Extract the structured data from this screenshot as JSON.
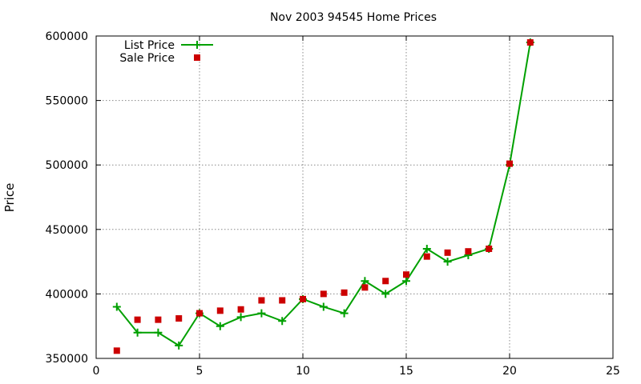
{
  "chart_data": {
    "type": "line",
    "title": "Nov 2003 94545 Home Prices",
    "xlabel": "",
    "ylabel": "Price",
    "xlim": [
      0,
      25
    ],
    "ylim": [
      350000,
      600000
    ],
    "xticks": [
      0,
      5,
      10,
      15,
      20,
      25
    ],
    "yticks": [
      350000,
      400000,
      450000,
      500000,
      550000,
      600000
    ],
    "grid": true,
    "legend_position": "top-left",
    "series": [
      {
        "name": "List Price",
        "style": "line-with-plus-markers",
        "color": "#00a000",
        "x": [
          1,
          2,
          3,
          4,
          5,
          6,
          7,
          8,
          9,
          10,
          11,
          12,
          13,
          14,
          15,
          16,
          17,
          18,
          19,
          20,
          21
        ],
        "values": [
          390000,
          370000,
          370000,
          360000,
          385000,
          375000,
          382000,
          385000,
          379000,
          396000,
          390000,
          385000,
          410000,
          400000,
          410000,
          435000,
          425000,
          430000,
          435000,
          500000,
          595000
        ]
      },
      {
        "name": "Sale Price",
        "style": "square-markers",
        "color": "#cc0000",
        "x": [
          1,
          2,
          3,
          4,
          5,
          6,
          7,
          8,
          9,
          10,
          11,
          12,
          13,
          14,
          15,
          16,
          17,
          18,
          19,
          20,
          21
        ],
        "values": [
          356000,
          380000,
          380000,
          381000,
          385000,
          387000,
          388000,
          395000,
          395000,
          396000,
          400000,
          401000,
          405000,
          410000,
          415000,
          429000,
          432000,
          433000,
          435000,
          501000,
          595000
        ]
      }
    ]
  }
}
